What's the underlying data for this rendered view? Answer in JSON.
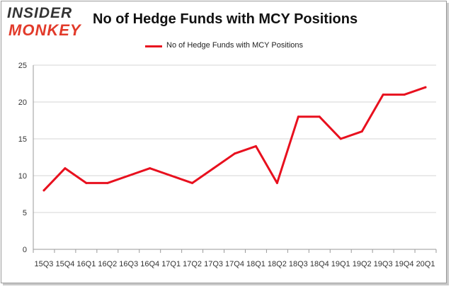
{
  "logo": {
    "line1": "INSIDER",
    "line2": "MONKEY"
  },
  "colors": {
    "line": "#e8101e",
    "grid": "#d6d6d6",
    "axis": "#9a9a9a",
    "logo_accent": "#e23a2a"
  },
  "chart_data": {
    "type": "line",
    "title": "No of Hedge Funds with MCY Positions",
    "xlabel": "",
    "ylabel": "",
    "ylim": [
      0,
      25
    ],
    "yticks": [
      0,
      5,
      10,
      15,
      20,
      25
    ],
    "grid": true,
    "legend_position": "top-center",
    "categories": [
      "15Q3",
      "15Q4",
      "16Q1",
      "16Q2",
      "16Q3",
      "16Q4",
      "17Q1",
      "17Q2",
      "17Q3",
      "17Q4",
      "18Q1",
      "18Q2",
      "18Q3",
      "18Q4",
      "19Q1",
      "19Q2",
      "19Q3",
      "19Q4",
      "20Q1"
    ],
    "series": [
      {
        "name": "No of Hedge Funds with MCY Positions",
        "values": [
          8,
          11,
          9,
          9,
          10,
          11,
          10,
          9,
          11,
          13,
          14,
          9,
          18,
          18,
          15,
          16,
          21,
          21,
          22
        ]
      }
    ]
  }
}
